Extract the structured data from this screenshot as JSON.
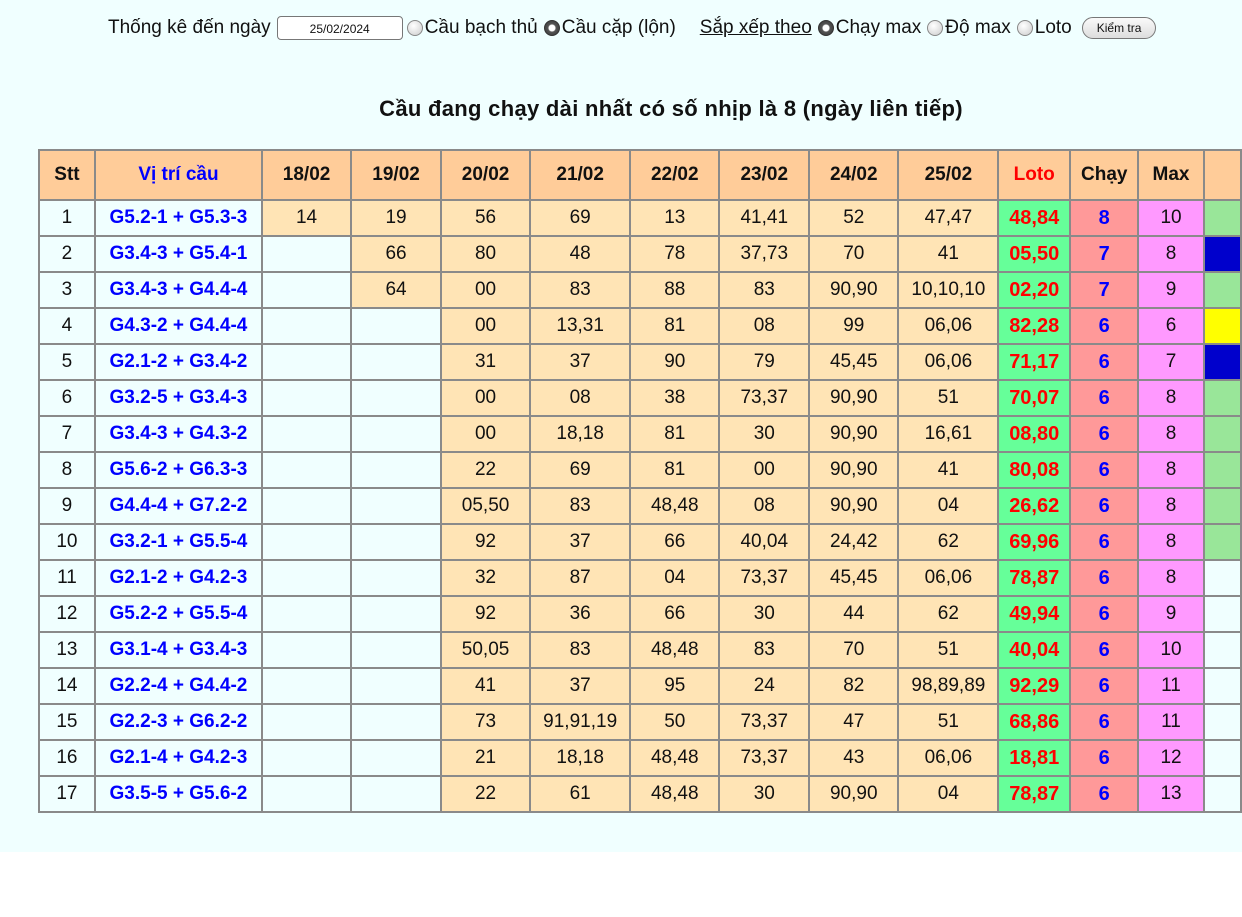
{
  "controls": {
    "date_label": "Thống kê đến ngày",
    "date_value": "25/02/2024",
    "mode_options": [
      {
        "label": "Cầu bạch thủ",
        "selected": false
      },
      {
        "label": "Cầu cặp (lộn)",
        "selected": true
      }
    ],
    "sort_label": "Sắp xếp theo",
    "sort_options": [
      {
        "label": "Chạy max",
        "selected": true
      },
      {
        "label": "Độ max",
        "selected": false
      },
      {
        "label": "Loto",
        "selected": false
      }
    ],
    "check_button": "Kiểm tra"
  },
  "title": "Cầu đang chạy dài nhất có số nhịp là 8 (ngày liên tiếp)",
  "table": {
    "headers": [
      "Stt",
      "Vị trí cầu",
      "18/02",
      "19/02",
      "20/02",
      "21/02",
      "22/02",
      "23/02",
      "24/02",
      "25/02",
      "Loto",
      "Chạy",
      "Max"
    ],
    "colors": {
      "extra_green": "#99e699",
      "extra_blue": "#0000cc",
      "extra_yellow": "#ffff00",
      "extra_none": "#f0ffff"
    },
    "rows": [
      {
        "stt": "1",
        "vitri": "G5.2-1 + G5.3-3",
        "days": [
          "14",
          "19",
          "56",
          "69",
          "13",
          "41,41",
          "52",
          "47,47"
        ],
        "loto": "48,84",
        "chay": "8",
        "max": "10",
        "extra": "extra_green"
      },
      {
        "stt": "2",
        "vitri": "G3.4-3 + G5.4-1",
        "days": [
          "",
          "66",
          "80",
          "48",
          "78",
          "37,73",
          "70",
          "41"
        ],
        "loto": "05,50",
        "chay": "7",
        "max": "8",
        "extra": "extra_blue"
      },
      {
        "stt": "3",
        "vitri": "G3.4-3 + G4.4-4",
        "days": [
          "",
          "64",
          "00",
          "83",
          "88",
          "83",
          "90,90",
          "10,10,10"
        ],
        "loto": "02,20",
        "chay": "7",
        "max": "9",
        "extra": "extra_green"
      },
      {
        "stt": "4",
        "vitri": "G4.3-2 + G4.4-4",
        "days": [
          "",
          "",
          "00",
          "13,31",
          "81",
          "08",
          "99",
          "06,06"
        ],
        "loto": "82,28",
        "chay": "6",
        "max": "6",
        "extra": "extra_yellow"
      },
      {
        "stt": "5",
        "vitri": "G2.1-2 + G3.4-2",
        "days": [
          "",
          "",
          "31",
          "37",
          "90",
          "79",
          "45,45",
          "06,06"
        ],
        "loto": "71,17",
        "chay": "6",
        "max": "7",
        "extra": "extra_blue"
      },
      {
        "stt": "6",
        "vitri": "G3.2-5 + G3.4-3",
        "days": [
          "",
          "",
          "00",
          "08",
          "38",
          "73,37",
          "90,90",
          "51"
        ],
        "loto": "70,07",
        "chay": "6",
        "max": "8",
        "extra": "extra_green"
      },
      {
        "stt": "7",
        "vitri": "G3.4-3 + G4.3-2",
        "days": [
          "",
          "",
          "00",
          "18,18",
          "81",
          "30",
          "90,90",
          "16,61"
        ],
        "loto": "08,80",
        "chay": "6",
        "max": "8",
        "extra": "extra_green"
      },
      {
        "stt": "8",
        "vitri": "G5.6-2 + G6.3-3",
        "days": [
          "",
          "",
          "22",
          "69",
          "81",
          "00",
          "90,90",
          "41"
        ],
        "loto": "80,08",
        "chay": "6",
        "max": "8",
        "extra": "extra_green"
      },
      {
        "stt": "9",
        "vitri": "G4.4-4 + G7.2-2",
        "days": [
          "",
          "",
          "05,50",
          "83",
          "48,48",
          "08",
          "90,90",
          "04"
        ],
        "loto": "26,62",
        "chay": "6",
        "max": "8",
        "extra": "extra_green"
      },
      {
        "stt": "10",
        "vitri": "G3.2-1 + G5.5-4",
        "days": [
          "",
          "",
          "92",
          "37",
          "66",
          "40,04",
          "24,42",
          "62"
        ],
        "loto": "69,96",
        "chay": "6",
        "max": "8",
        "extra": "extra_green"
      },
      {
        "stt": "11",
        "vitri": "G2.1-2 + G4.2-3",
        "days": [
          "",
          "",
          "32",
          "87",
          "04",
          "73,37",
          "45,45",
          "06,06"
        ],
        "loto": "78,87",
        "chay": "6",
        "max": "8",
        "extra": "extra_none"
      },
      {
        "stt": "12",
        "vitri": "G5.2-2 + G5.5-4",
        "days": [
          "",
          "",
          "92",
          "36",
          "66",
          "30",
          "44",
          "62"
        ],
        "loto": "49,94",
        "chay": "6",
        "max": "9",
        "extra": "extra_none"
      },
      {
        "stt": "13",
        "vitri": "G3.1-4 + G3.4-3",
        "days": [
          "",
          "",
          "50,05",
          "83",
          "48,48",
          "83",
          "70",
          "51"
        ],
        "loto": "40,04",
        "chay": "6",
        "max": "10",
        "extra": "extra_none"
      },
      {
        "stt": "14",
        "vitri": "G2.2-4 + G4.4-2",
        "days": [
          "",
          "",
          "41",
          "37",
          "95",
          "24",
          "82",
          "98,89,89"
        ],
        "loto": "92,29",
        "chay": "6",
        "max": "11",
        "extra": "extra_none"
      },
      {
        "stt": "15",
        "vitri": "G2.2-3 + G6.2-2",
        "days": [
          "",
          "",
          "73",
          "91,91,19",
          "50",
          "73,37",
          "47",
          "51"
        ],
        "loto": "68,86",
        "chay": "6",
        "max": "11",
        "extra": "extra_none"
      },
      {
        "stt": "16",
        "vitri": "G2.1-4 + G4.2-3",
        "days": [
          "",
          "",
          "21",
          "18,18",
          "48,48",
          "73,37",
          "43",
          "06,06"
        ],
        "loto": "18,81",
        "chay": "6",
        "max": "12",
        "extra": "extra_none"
      },
      {
        "stt": "17",
        "vitri": "G3.5-5 + G5.6-2",
        "days": [
          "",
          "",
          "22",
          "61",
          "48,48",
          "30",
          "90,90",
          "04"
        ],
        "loto": "78,87",
        "chay": "6",
        "max": "13",
        "extra": "extra_none"
      }
    ]
  }
}
